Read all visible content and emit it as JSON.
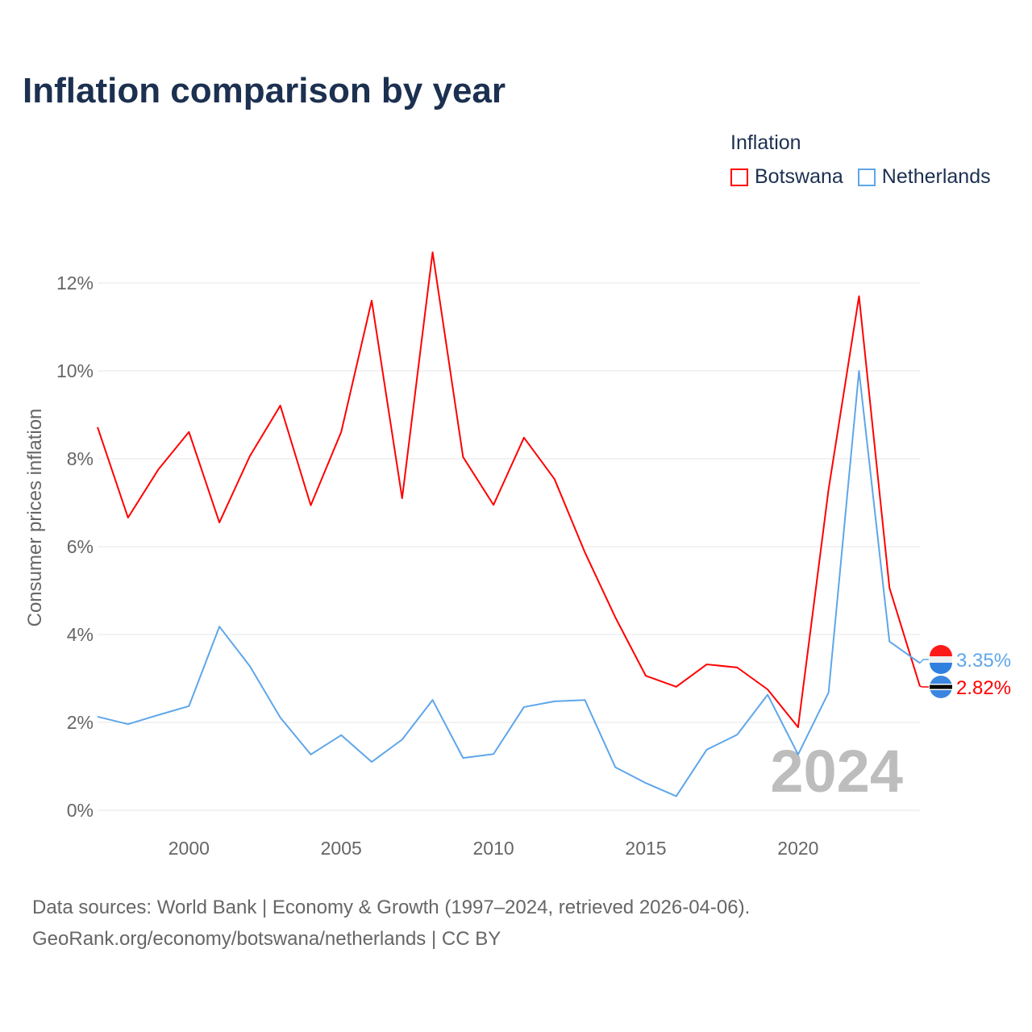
{
  "chart_data": {
    "type": "line",
    "title": "Inflation comparison by year",
    "xlabel": "",
    "ylabel": "Consumer prices inflation",
    "legend_title": "Inflation",
    "legend_placement": "top-right",
    "ylim": [
      0,
      12.7
    ],
    "xlim": [
      1997,
      2024
    ],
    "yticks": [
      0,
      2,
      4,
      6,
      8,
      10,
      12
    ],
    "ytick_labels": [
      "0%",
      "2%",
      "4%",
      "6%",
      "8%",
      "10%",
      "12%"
    ],
    "xticks": [
      2000,
      2005,
      2010,
      2015,
      2020
    ],
    "xtick_labels": [
      "2000",
      "2005",
      "2010",
      "2015",
      "2020"
    ],
    "grid": true,
    "year_watermark": "2024",
    "x": [
      1997,
      1998,
      1999,
      2000,
      2001,
      2002,
      2003,
      2004,
      2005,
      2006,
      2007,
      2008,
      2009,
      2010,
      2011,
      2012,
      2013,
      2014,
      2015,
      2016,
      2017,
      2018,
      2019,
      2020,
      2021,
      2022,
      2023,
      2024
    ],
    "series": [
      {
        "name": "Botswana",
        "color": "#ff0000",
        "end_label": "2.82%",
        "values": [
          8.72,
          6.66,
          7.76,
          8.61,
          6.55,
          8.06,
          9.21,
          6.94,
          8.61,
          11.6,
          7.1,
          12.7,
          8.04,
          6.95,
          8.48,
          7.54,
          5.87,
          4.39,
          3.06,
          2.81,
          3.32,
          3.25,
          2.75,
          1.89,
          7.3,
          11.7,
          5.06,
          2.82
        ]
      },
      {
        "name": "Netherlands",
        "color": "#5ea6ea",
        "end_label": "3.35%",
        "values": [
          2.13,
          1.96,
          2.17,
          2.37,
          4.18,
          3.28,
          2.11,
          1.27,
          1.71,
          1.1,
          1.61,
          2.51,
          1.19,
          1.28,
          2.35,
          2.48,
          2.51,
          0.98,
          0.62,
          0.32,
          1.38,
          1.72,
          2.63,
          1.27,
          2.68,
          10.0,
          3.84,
          3.35
        ]
      }
    ]
  },
  "footer": {
    "line1": "Data sources: World Bank | Economy & Growth (1997–2024, retrieved 2026-04-06).",
    "line2": "GeoRank.org/economy/botswana/netherlands | CC BY"
  }
}
